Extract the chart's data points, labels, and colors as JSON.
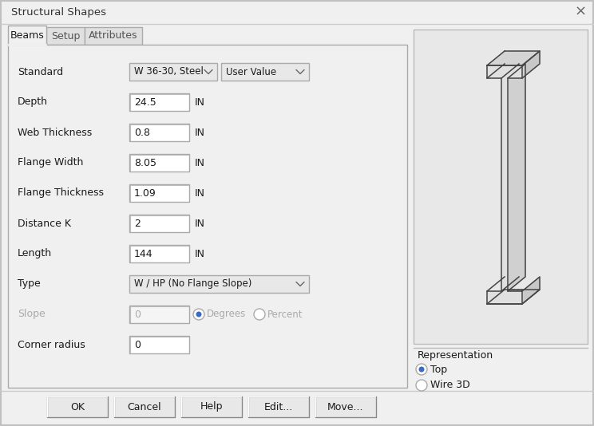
{
  "title": "Structural Shapes",
  "bg_color": "#f0f0f0",
  "tabs": [
    "Beams",
    "Setup",
    "Attributes"
  ],
  "fields": [
    {
      "label": "Standard",
      "type": "dropdown_row",
      "v1": "W 36-30, Steel",
      "v2": "User Value"
    },
    {
      "label": "Depth",
      "type": "input_unit",
      "value": "24.5"
    },
    {
      "label": "Web Thickness",
      "type": "input_unit",
      "value": "0.8"
    },
    {
      "label": "Flange Width",
      "type": "input_unit",
      "value": "8.05"
    },
    {
      "label": "Flange Thickness",
      "type": "input_unit",
      "value": "1.09"
    },
    {
      "label": "Distance K",
      "type": "input_unit",
      "value": "2"
    },
    {
      "label": "Length",
      "type": "input_unit",
      "value": "144"
    },
    {
      "label": "Type",
      "type": "dropdown",
      "value": "W / HP (No Flange Slope)"
    },
    {
      "label": "Slope",
      "type": "slope",
      "value": "0"
    },
    {
      "label": "Corner radius",
      "type": "input",
      "value": "0"
    }
  ],
  "buttons": [
    "OK",
    "Cancel",
    "Help",
    "Edit...",
    "Move..."
  ],
  "representation_label": "Representation",
  "radio_options": [
    "Top",
    "Wire 3D"
  ],
  "selected_radio": 0,
  "preview_bg": "#e8e8e8",
  "input_bg": "#ffffff",
  "text_color": "#1a1a1a",
  "disabled_text_color": "#aaaaaa",
  "button_bg": "#e8e8e8",
  "dropdown_bg": "#e8e8e8",
  "border_color": "#aaaaaa",
  "title_color": "#333333",
  "tab_active_bg": "#f0f0f0",
  "tab_inactive_bg": "#e0e0e0",
  "beam_line_color": "#444444",
  "beam_fill_front": "#e0e0e0",
  "beam_fill_side": "#c8c8c8",
  "beam_fill_top": "#d4d4d4"
}
